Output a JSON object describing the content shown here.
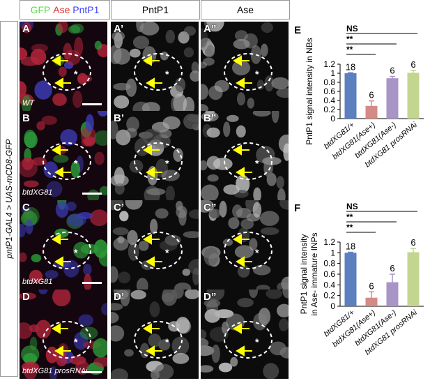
{
  "headers": {
    "gfp": "GFP",
    "ase": "Ase",
    "pntp1": "PntP1",
    "col2": "PntP1",
    "col3": "Ase"
  },
  "side_label": "pntP1-GAL4 > UAS-mCD8-GFP",
  "panels": [
    [
      "A",
      "A’",
      "A”"
    ],
    [
      "B",
      "B’",
      "B”"
    ],
    [
      "C",
      "C’",
      "C”"
    ],
    [
      "D",
      "D’",
      "D”"
    ]
  ],
  "genotype_tags": [
    "WT",
    "btdXG81",
    "btdXG81",
    "btdXG81 prosRNAi"
  ],
  "colors": {
    "blue": "#5b7fbf",
    "red": "#d48a85",
    "purple": "#a894c6",
    "green": "#c4d58f",
    "arrow": "#ffff00"
  },
  "chart_data": [
    {
      "type": "bar",
      "panel_label": "E",
      "ylabel": "PntP1 signal intensity in NBs",
      "categories": [
        "btdXG81/+",
        "btdXG81(Ase+)",
        "btdXG81(Ase-)",
        "btdXG81 prosRNAi"
      ],
      "values": [
        1.0,
        0.28,
        0.89,
        1.01
      ],
      "errors": [
        0.01,
        0.11,
        0.04,
        0.05
      ],
      "n_labels": [
        "18",
        "6",
        "6",
        "6"
      ],
      "ylim": [
        0,
        1.2
      ],
      "yticks": [
        "0",
        "0.2",
        "0.4",
        "0.6",
        "0.8",
        "1",
        "1.2"
      ],
      "significance": [
        "NS",
        "**",
        "**"
      ]
    },
    {
      "type": "bar",
      "panel_label": "F",
      "ylabel": "PntP1 signal intensity",
      "ylabel2": "in Ase- immature INPs",
      "categories": [
        "btdXG81/+",
        "btdXG81(Ase+)",
        "btdXG81(Ase-)",
        "btdXG81 prosRNAi"
      ],
      "values": [
        1.0,
        0.16,
        0.45,
        1.01
      ],
      "errors": [
        0.01,
        0.11,
        0.15,
        0.07
      ],
      "n_labels": [
        "18",
        "6",
        "6",
        "6"
      ],
      "ylim": [
        0,
        1.2
      ],
      "yticks": [
        "0",
        "0.2",
        "0.4",
        "0.6",
        "0.8",
        "1",
        "1.2"
      ],
      "significance": [
        "NS",
        "**",
        "**"
      ]
    }
  ]
}
